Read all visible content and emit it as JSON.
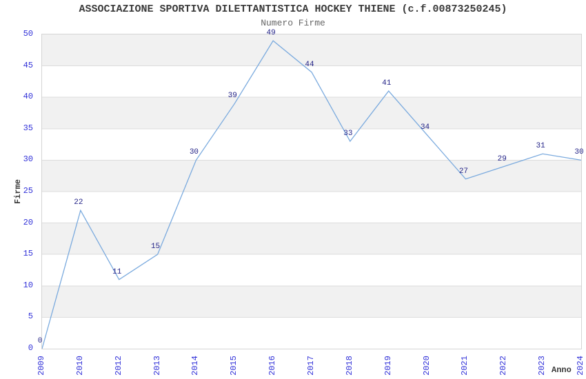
{
  "chart_data": {
    "type": "line",
    "title": "ASSOCIAZIONE SPORTIVA DILETTANTISTICA HOCKEY THIENE (c.f.00873250245)",
    "subtitle": "Numero Firme",
    "xlabel": "Anno",
    "ylabel": "Firme",
    "categories": [
      "2009",
      "2010",
      "2012",
      "2013",
      "2014",
      "2015",
      "2016",
      "2017",
      "2018",
      "2019",
      "2020",
      "2021",
      "2022",
      "2023",
      "2024"
    ],
    "values": [
      0,
      22,
      11,
      15,
      30,
      39,
      49,
      44,
      33,
      41,
      34,
      27,
      29,
      31,
      30
    ],
    "ylim": [
      0,
      50
    ],
    "ytick_step": 5,
    "yticks": [
      0,
      5,
      10,
      15,
      20,
      25,
      30,
      35,
      40,
      45,
      50
    ],
    "grid": "horizontal-lines-with-alternating-bands",
    "legend": "none",
    "data_labels": true,
    "x_tick_rotation": -90,
    "colors": {
      "line": "#7aaade",
      "tick_label": "#3030d8",
      "data_label": "#1f1f85",
      "band": "#f1f1f1",
      "gridline": "#dcdcdc",
      "plot_border": "#d4d4d4",
      "title": "#3a3a3a",
      "subtitle": "#666666",
      "axis_title": "#3a3a3a"
    }
  }
}
